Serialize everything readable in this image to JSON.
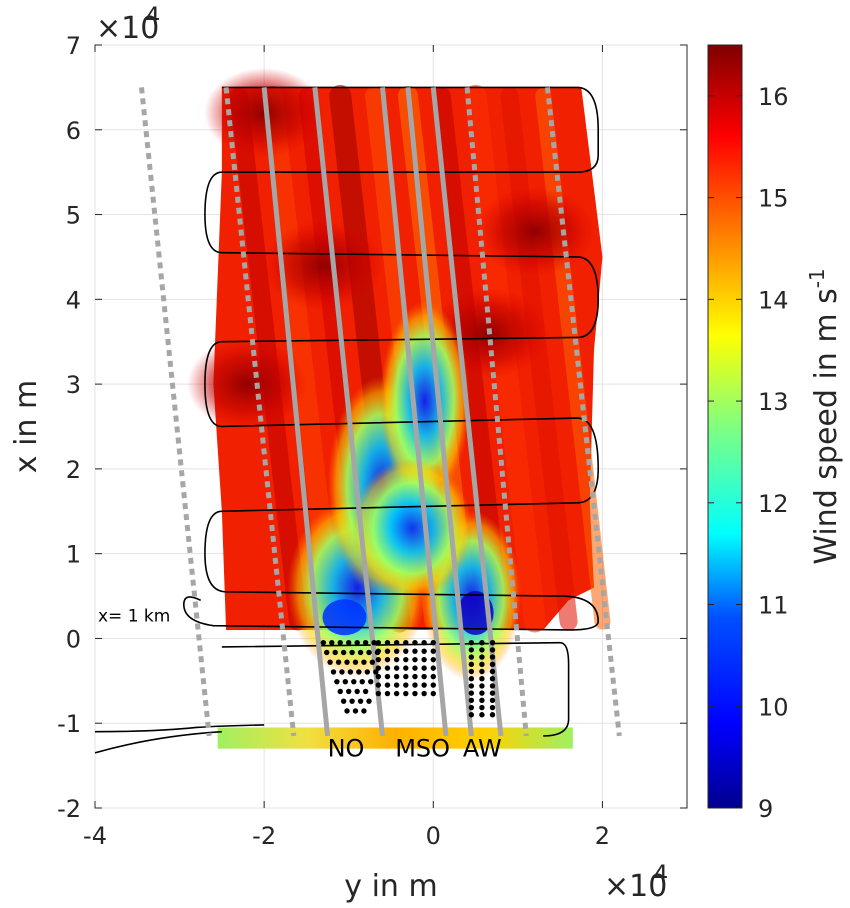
{
  "chart_data": {
    "type": "heatmap",
    "xlabel": "y in m",
    "ylabel": "x in m",
    "x_exponent_label": "×10",
    "x_exponent_power": "4",
    "y_exponent_label": "×10",
    "y_exponent_power": "4",
    "xlim": [
      -40000,
      30000
    ],
    "ylim": [
      -20000,
      70000
    ],
    "x_ticks": [
      -40000,
      -20000,
      0,
      20000
    ],
    "x_tick_labels": [
      "-4",
      "-2",
      "0",
      "2"
    ],
    "y_ticks": [
      -20000,
      -10000,
      0,
      10000,
      20000,
      30000,
      40000,
      50000,
      60000,
      70000
    ],
    "y_tick_labels": [
      "-2",
      "-1",
      "0",
      "1",
      "2",
      "3",
      "4",
      "5",
      "6",
      "7"
    ],
    "grid": true,
    "colorbar": {
      "label": "Wind speed in m s",
      "label_superscript": "-1",
      "range": [
        9,
        16.5
      ],
      "ticks": [
        9,
        10,
        11,
        12,
        13,
        14,
        15,
        16
      ],
      "tick_labels": [
        "9",
        "10",
        "11",
        "12",
        "13",
        "14",
        "15",
        "16"
      ],
      "colormap": "jet"
    },
    "annotations": [
      {
        "text": "x= 1 km",
        "x": -40000,
        "y": 2000
      },
      {
        "text": "NO",
        "x": -12500,
        "y": -13000
      },
      {
        "text": "MSO",
        "x": -4500,
        "y": -13000
      },
      {
        "text": "AW",
        "x": 3500,
        "y": -13000
      }
    ],
    "flight_legs_y_extent": [
      -25000,
      17000
    ],
    "flight_leg_altitudes_x": [
      65000,
      55000,
      45000,
      35000,
      25000,
      15000,
      5000,
      -10000
    ],
    "wake_band": {
      "description_values_min_ms": 9.5,
      "center_x_range": [
        0,
        15000
      ]
    }
  }
}
